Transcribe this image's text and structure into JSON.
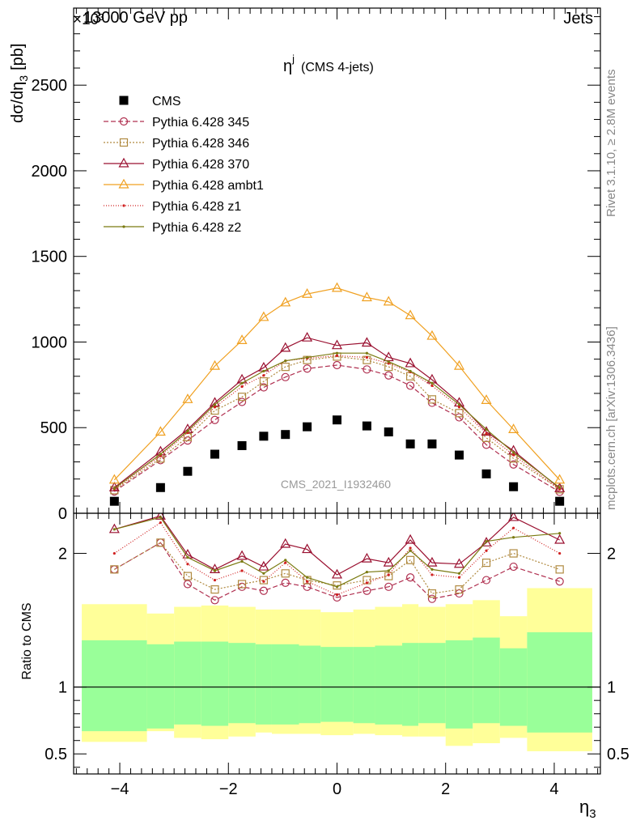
{
  "header": {
    "left": "13000 GeV pp",
    "right": "Jets",
    "exponent": "×10³"
  },
  "side": {
    "rivet": "Rivet 3.1.10, ≥ 2.8M events",
    "mcplots": "mcplots.cern.ch [arXiv:1306.3436]"
  },
  "chart_data": {
    "type": "line",
    "title_main": "η",
    "title_sup": "j",
    "title_sub": "(CMS 4-jets)",
    "watermark": "CMS_2021_I1932460",
    "ylabel_main": "dσ/dη",
    "ylabel_sub": "3",
    "ylabel_unit": "[pb]",
    "xlabel_main": "η",
    "xlabel_sub": "3",
    "ratio_ylabel": "Ratio to CMS",
    "xlim": [
      -4.85,
      4.85
    ],
    "ylim_main": [
      0,
      2950
    ],
    "ylim_ratio": [
      0.35,
      2.3
    ],
    "x_ticks": [
      {
        "v": -4,
        "label": "−4"
      },
      {
        "v": -2,
        "label": "−2"
      },
      {
        "v": 0,
        "label": "0"
      },
      {
        "v": 2,
        "label": "2"
      },
      {
        "v": 4,
        "label": "4"
      }
    ],
    "y_ticks_main": [
      {
        "v": 0,
        "label": "0"
      },
      {
        "v": 500,
        "label": "500"
      },
      {
        "v": 1000,
        "label": "1000"
      },
      {
        "v": 1500,
        "label": "1500"
      },
      {
        "v": 2000,
        "label": "2000"
      },
      {
        "v": 2500,
        "label": "2500"
      }
    ],
    "y_ticks_ratio": [
      {
        "v": 0.5,
        "label": "0.5"
      },
      {
        "v": 1,
        "label": "1"
      },
      {
        "v": 2,
        "label": "2"
      }
    ],
    "x": [
      -4.1,
      -3.25,
      -2.75,
      -2.25,
      -1.75,
      -1.35,
      -0.95,
      -0.55,
      0.0,
      0.55,
      0.95,
      1.35,
      1.75,
      2.25,
      2.75,
      3.25,
      4.1
    ],
    "bins": [
      [
        -4.7,
        -3.5
      ],
      [
        -3.5,
        -3.0
      ],
      [
        -3.0,
        -2.5
      ],
      [
        -2.5,
        -2.0
      ],
      [
        -2.0,
        -1.5
      ],
      [
        -1.5,
        -1.2
      ],
      [
        -1.2,
        -0.7
      ],
      [
        -0.7,
        -0.3
      ],
      [
        -0.3,
        0.3
      ],
      [
        0.3,
        0.7
      ],
      [
        0.7,
        1.2
      ],
      [
        1.2,
        1.5
      ],
      [
        1.5,
        2.0
      ],
      [
        2.0,
        2.5
      ],
      [
        2.5,
        3.0
      ],
      [
        3.0,
        3.5
      ],
      [
        3.5,
        4.7
      ]
    ],
    "data": {
      "name": "CMS",
      "values": [
        70,
        150,
        245,
        345,
        395,
        450,
        460,
        505,
        545,
        510,
        475,
        405,
        405,
        340,
        230,
        155,
        70
      ]
    },
    "series": [
      {
        "name": "Pythia 6.428 345",
        "color": "#b03050",
        "dash": "6,3",
        "marker": "circle",
        "values": [
          127,
          310,
          425,
          545,
          650,
          735,
          795,
          845,
          865,
          840,
          805,
          745,
          645,
          560,
          400,
          285,
          125
        ],
        "ratio": [
          1.88,
          2.08,
          1.77,
          1.65,
          1.75,
          1.72,
          1.78,
          1.75,
          1.67,
          1.72,
          1.75,
          1.82,
          1.66,
          1.7,
          1.8,
          1.9,
          1.79
        ]
      },
      {
        "name": "Pythia 6.428 346",
        "color": "#b08a40",
        "dash": "2,2",
        "marker": "square",
        "values": [
          135,
          320,
          445,
          600,
          680,
          770,
          855,
          895,
          915,
          895,
          855,
          800,
          665,
          585,
          440,
          320,
          140
        ],
        "ratio": [
          1.88,
          2.08,
          1.83,
          1.73,
          1.77,
          1.8,
          1.85,
          1.8,
          1.76,
          1.8,
          1.83,
          1.95,
          1.7,
          1.73,
          1.93,
          2.0,
          1.88
        ]
      },
      {
        "name": "Pythia 6.428 370",
        "color": "#9a1030",
        "dash": "",
        "marker": "triangle",
        "values": [
          150,
          360,
          490,
          645,
          780,
          850,
          965,
          1025,
          980,
          995,
          910,
          875,
          780,
          645,
          475,
          365,
          145
        ],
        "ratio": [
          2.18,
          2.28,
          1.99,
          1.88,
          1.98,
          1.9,
          2.07,
          2.03,
          1.84,
          1.96,
          1.93,
          2.1,
          1.93,
          1.92,
          2.08,
          2.27,
          2.1
        ]
      },
      {
        "name": "Pythia 6.428 ambt1",
        "color": "#f0a020",
        "dash": "",
        "marker": "triangle",
        "values": [
          195,
          475,
          665,
          860,
          1010,
          1145,
          1230,
          1280,
          1315,
          1260,
          1235,
          1155,
          1035,
          860,
          660,
          490,
          195
        ],
        "ratio": [
          2.75,
          3.15,
          2.7,
          2.49,
          2.55,
          2.54,
          2.68,
          2.53,
          2.41,
          2.47,
          2.6,
          2.85,
          2.56,
          2.53,
          2.87,
          3.16,
          2.79
        ]
      },
      {
        "name": "Pythia 6.428 z1",
        "color": "#d02020",
        "dash": "1,2",
        "marker": "dot",
        "values": [
          140,
          335,
          470,
          620,
          740,
          805,
          890,
          905,
          920,
          910,
          875,
          825,
          745,
          620,
          465,
          340,
          140
        ],
        "ratio": [
          2.0,
          2.23,
          1.92,
          1.8,
          1.87,
          1.79,
          1.93,
          1.79,
          1.69,
          1.78,
          1.84,
          2.04,
          1.84,
          1.82,
          2.02,
          2.19,
          2.0
        ]
      },
      {
        "name": "Pythia 6.428 z2",
        "color": "#7a7a10",
        "dash": "",
        "marker": "dot",
        "values": [
          145,
          345,
          480,
          635,
          760,
          830,
          890,
          910,
          935,
          935,
          885,
          830,
          760,
          635,
          490,
          355,
          150
        ],
        "ratio": [
          2.18,
          2.27,
          1.97,
          1.87,
          1.94,
          1.85,
          1.95,
          1.82,
          1.75,
          1.86,
          1.87,
          2.02,
          1.88,
          1.85,
          2.09,
          2.12,
          2.15
        ]
      }
    ],
    "band_inner": [
      [
        0.67,
        1.35
      ],
      [
        0.69,
        1.32
      ],
      [
        0.72,
        1.34
      ],
      [
        0.71,
        1.34
      ],
      [
        0.73,
        1.33
      ],
      [
        0.72,
        1.32
      ],
      [
        0.72,
        1.32
      ],
      [
        0.73,
        1.31
      ],
      [
        0.74,
        1.3
      ],
      [
        0.73,
        1.3
      ],
      [
        0.72,
        1.31
      ],
      [
        0.71,
        1.33
      ],
      [
        0.73,
        1.33
      ],
      [
        0.69,
        1.35
      ],
      [
        0.73,
        1.37
      ],
      [
        0.71,
        1.29
      ],
      [
        0.66,
        1.41
      ]
    ],
    "band_outer": [
      [
        0.59,
        1.62
      ],
      [
        0.67,
        1.55
      ],
      [
        0.62,
        1.6
      ],
      [
        0.61,
        1.61
      ],
      [
        0.63,
        1.6
      ],
      [
        0.66,
        1.58
      ],
      [
        0.65,
        1.58
      ],
      [
        0.65,
        1.58
      ],
      [
        0.64,
        1.56
      ],
      [
        0.65,
        1.58
      ],
      [
        0.64,
        1.6
      ],
      [
        0.63,
        1.62
      ],
      [
        0.63,
        1.6
      ],
      [
        0.56,
        1.62
      ],
      [
        0.58,
        1.65
      ],
      [
        0.62,
        1.53
      ],
      [
        0.52,
        1.74
      ]
    ]
  }
}
